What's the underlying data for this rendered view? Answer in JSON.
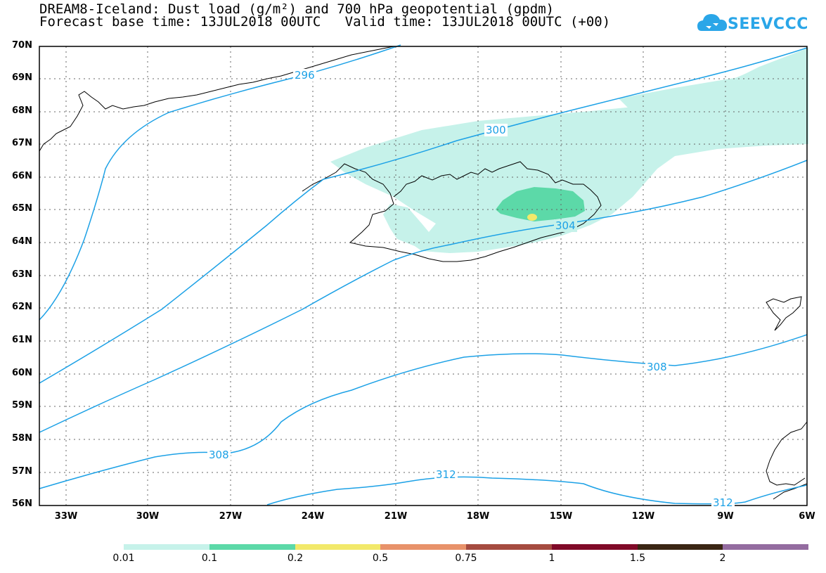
{
  "title": {
    "line1": "DREAM8-Iceland: Dust load (g/m²) and 700 hPa geopotential (gpdm)",
    "line2": "Forecast base time: 13JUL2018 00UTC   Valid time: 13JUL2018 00UTC (+00)"
  },
  "logo": {
    "text": "SEEVCCC",
    "color": "#2aa6e8",
    "icon": "cloud-icon"
  },
  "axes": {
    "lat_labels": [
      "70N",
      "69N",
      "68N",
      "67N",
      "66N",
      "65N",
      "64N",
      "63N",
      "62N",
      "61N",
      "60N",
      "59N",
      "58N",
      "57N",
      "56N"
    ],
    "lon_labels": [
      "33W",
      "30W",
      "27W",
      "24W",
      "21W",
      "18W",
      "15W",
      "12W",
      "9W",
      "6W"
    ]
  },
  "contour_labels": [
    "296",
    "300",
    "304",
    "308",
    "308",
    "312",
    "312"
  ],
  "contour_color": "#1ca1e6",
  "colorbar": {
    "colors": [
      "#c6f2ea",
      "#5cd9a8",
      "#f2e96a",
      "#e8926a",
      "#a54b40",
      "#800a28",
      "#3a2614",
      "#946ca0"
    ],
    "labels": [
      "0.01",
      "0.1",
      "0.2",
      "0.5",
      "0.75",
      "1",
      "1.5",
      "2"
    ]
  }
}
